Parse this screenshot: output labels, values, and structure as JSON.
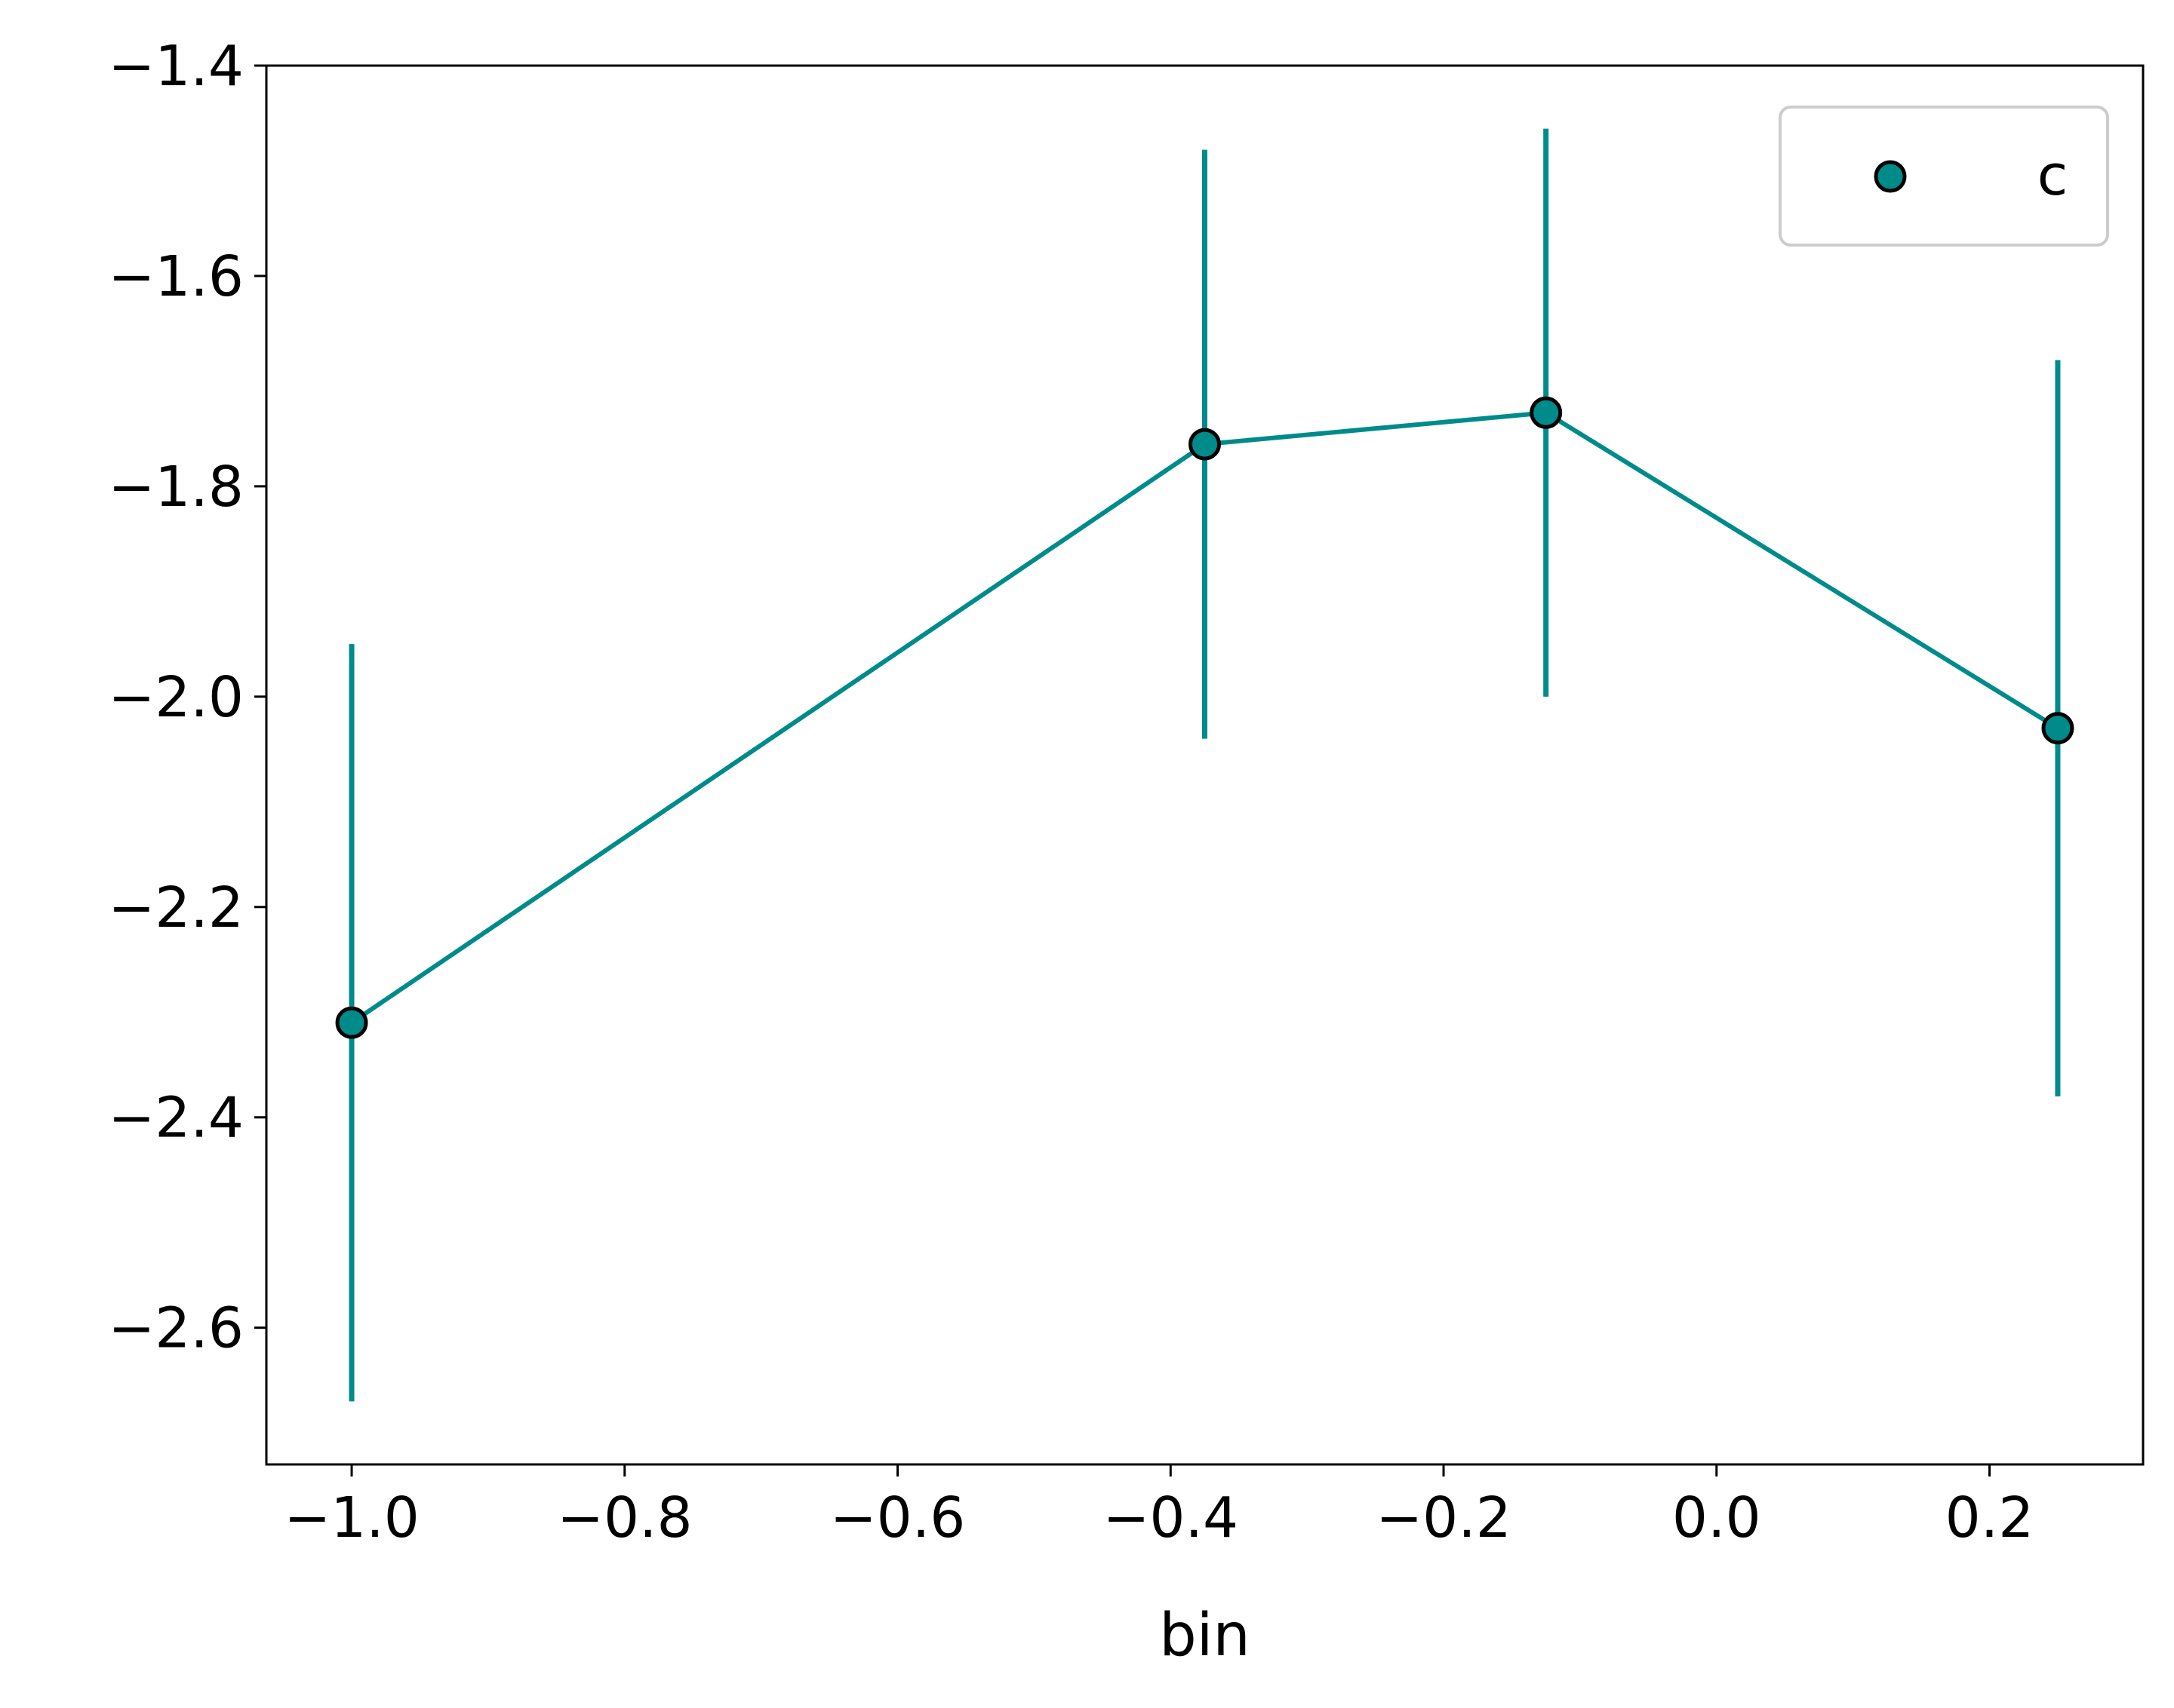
{
  "chart_data": {
    "type": "line",
    "title": "",
    "xlabel": "bin",
    "ylabel": "",
    "xlim": [
      -1.0625,
      0.3125
    ],
    "ylim": [
      -2.73,
      -1.4
    ],
    "xticks": [
      -1.0,
      -0.8,
      -0.6,
      -0.4,
      -0.2,
      0.0,
      0.2
    ],
    "xtick_labels": [
      "−1.0",
      "−0.8",
      "−0.6",
      "−0.4",
      "−0.2",
      "0.0",
      "0.2"
    ],
    "yticks": [
      -2.6,
      -2.4,
      -2.2,
      -2.0,
      -1.8,
      -1.6,
      -1.4
    ],
    "ytick_labels": [
      "−2.6",
      "−2.4",
      "−2.2",
      "−2.0",
      "−1.8",
      "−1.6",
      "−1.4"
    ],
    "grid": false,
    "legend_position": "top-right",
    "series": [
      {
        "name": "c",
        "color": "#008b8b",
        "marker_edge_color": "#000000",
        "x": [
          -1.0,
          -0.375,
          -0.125,
          0.25
        ],
        "y": [
          -2.31,
          -1.76,
          -1.73,
          -2.03
        ],
        "yerr_low": [
          -2.67,
          -2.04,
          -2.0,
          -2.38
        ],
        "yerr_high": [
          -1.95,
          -1.48,
          -1.46,
          -1.68
        ]
      }
    ]
  }
}
